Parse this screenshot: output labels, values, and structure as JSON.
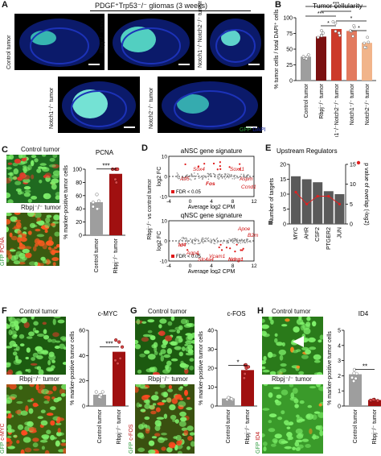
{
  "panel_A": {
    "letter": "A",
    "title": "PDGF⁺Trp53⁻/⁻ gliomas (3 weeks)",
    "images": [
      {
        "label": "Control tumor"
      },
      {
        "label": "Rbpj⁻/⁻ tumor"
      },
      {
        "label": "Notch1⁻/⁻Notch2⁻/⁻ tumor"
      },
      {
        "label": "Notch1⁻/⁻ tumor"
      },
      {
        "label": "Notch2⁻/⁻ tumor"
      }
    ],
    "legend_gfp": "GFP",
    "legend_dapi": "DAPI",
    "colors": {
      "gfp": "#4fe0c8",
      "dapi": "#1a2aa0"
    }
  },
  "panel_B": {
    "letter": "B",
    "chart_data": {
      "type": "bar",
      "title": "Tumor cellularity",
      "ylabel": "% tumor cells / total DAPI⁺ cells",
      "ylim": [
        0,
        100
      ],
      "yticks": [
        0,
        25,
        50,
        75,
        100
      ],
      "categories": [
        "Control tumor",
        "Rbpj⁻/⁻ tumor",
        "Notch1⁻/⁻Notch2⁻/⁻ tumor",
        "Notch1⁻/⁻ tumor",
        "Notch2⁻/⁻ tumor"
      ],
      "values": [
        38,
        70,
        82,
        79,
        60
      ],
      "colors": [
        "#9e9e9e",
        "#7a1010",
        "#cc3a2a",
        "#e27a5f",
        "#f1b48a"
      ],
      "significance": [
        "***",
        "*",
        "***",
        "*",
        "*",
        "*"
      ]
    }
  },
  "panel_C": {
    "letter": "C",
    "img_top": "Control tumor",
    "img_bottom": "Rbpj⁻/⁻ tumor",
    "stain_gfp": "GFP",
    "stain_marker": "PCNA",
    "chart_data": {
      "type": "bar",
      "title": "PCNA",
      "ylabel": "% marker-positive tumor cells",
      "ylim": [
        0,
        100
      ],
      "yticks": [
        0,
        20,
        40,
        60,
        80,
        100
      ],
      "categories": [
        "Control tumor",
        "Rbpj⁻/⁻ tumor"
      ],
      "values": [
        50,
        93
      ],
      "colors": [
        "#9e9e9e",
        "#a01010"
      ],
      "significance": "***"
    }
  },
  "panel_D": {
    "letter": "D",
    "ylabel_main": "Rbpj⁻/⁻ vs control tumor",
    "chart_data": [
      {
        "type": "scatter",
        "title": "aNSC gene signature",
        "xlabel": "Average log2 CPM",
        "ylabel": "log2 FC",
        "xlim": [
          -4,
          12
        ],
        "ylim": [
          -10,
          10
        ],
        "xticks": [
          -4,
          0,
          4,
          8,
          12
        ],
        "yticks": [
          -10,
          0,
          10
        ],
        "legend": "FDR < 0.05",
        "annotations": [
          "Sox4",
          "Sox11",
          "Atf5",
          "Fos",
          "Aspm",
          "Ccnd1"
        ]
      },
      {
        "type": "scatter",
        "title": "qNSC gene signature",
        "xlabel": "Average log2 CPM",
        "ylabel": "log2 FC",
        "xlim": [
          -4,
          12
        ],
        "ylim": [
          -10,
          10
        ],
        "xticks": [
          -4,
          0,
          4,
          8,
          12
        ],
        "yticks": [
          -10,
          0,
          10
        ],
        "legend": "FDR < 0.05",
        "annotations": [
          "Apoe",
          "B2m",
          "Id4",
          "Aqp4",
          "Vcam1",
          "Slc4a4",
          "Ndrg1"
        ]
      }
    ]
  },
  "panel_E": {
    "letter": "E",
    "chart_data": {
      "type": "bar",
      "title": "Upstream Regulators",
      "categories": [
        "MYC",
        "AHR",
        "CSF2",
        "PTGER2",
        "JUN"
      ],
      "ylabel": "Number of targets",
      "ylabel_right": "p value of overlap (-log2)",
      "ylim": [
        0,
        20
      ],
      "yticks": [
        0,
        5,
        10,
        15,
        20
      ],
      "values": [
        16,
        15,
        14,
        11,
        10
      ],
      "ylim_right": [
        0,
        15
      ],
      "yticks_right": [
        0,
        5,
        10,
        15
      ],
      "line_values": [
        8,
        5,
        7,
        7,
        5
      ],
      "bar_color": "#5a5a5a",
      "line_color": "#e02020"
    }
  },
  "panel_F": {
    "letter": "F",
    "img_top": "Control tumor",
    "img_bottom": "Rbpj⁻/⁻ tumor",
    "stain_gfp": "GFP",
    "stain_marker": "c-MYC",
    "chart_data": {
      "type": "bar",
      "title": "c-MYC",
      "ylabel": "% marker-positive tumor cells",
      "ylim": [
        0,
        60
      ],
      "yticks": [
        0,
        20,
        40,
        60
      ],
      "categories": [
        "Control tumor",
        "Rbpj⁻/⁻ tumor"
      ],
      "values": [
        9,
        43
      ],
      "colors": [
        "#9e9e9e",
        "#a01010"
      ],
      "significance": "***"
    }
  },
  "panel_G": {
    "letter": "G",
    "img_top": "Control tumor",
    "img_bottom": "Rbpj⁻/⁻ tumor",
    "stain_gfp": "GFP",
    "stain_marker": "c-FOS",
    "chart_data": {
      "type": "bar",
      "title": "c-FOS",
      "ylabel": "% marker-positive tumor cells",
      "ylim": [
        0,
        40
      ],
      "yticks": [
        0,
        10,
        20,
        30,
        40
      ],
      "categories": [
        "Control tumor",
        "Rbpj⁻/⁻ tumor"
      ],
      "values": [
        4,
        19
      ],
      "colors": [
        "#9e9e9e",
        "#a01010"
      ],
      "significance": "*"
    }
  },
  "panel_H": {
    "letter": "H",
    "img_top": "Control tumor",
    "img_bottom": "Rbpj⁻/⁻ tumor",
    "stain_gfp": "GFP",
    "stain_marker": "ID4",
    "chart_data": {
      "type": "bar",
      "title": "ID4",
      "ylabel": "% marker-positive tumor cells",
      "ylim": [
        0,
        5
      ],
      "yticks": [
        0,
        1,
        2,
        3,
        4,
        5
      ],
      "categories": [
        "Control tumor",
        "Rbpj⁻/⁻ tumor"
      ],
      "values": [
        2.1,
        0.4
      ],
      "colors": [
        "#9e9e9e",
        "#a01010"
      ],
      "significance": "**"
    }
  }
}
